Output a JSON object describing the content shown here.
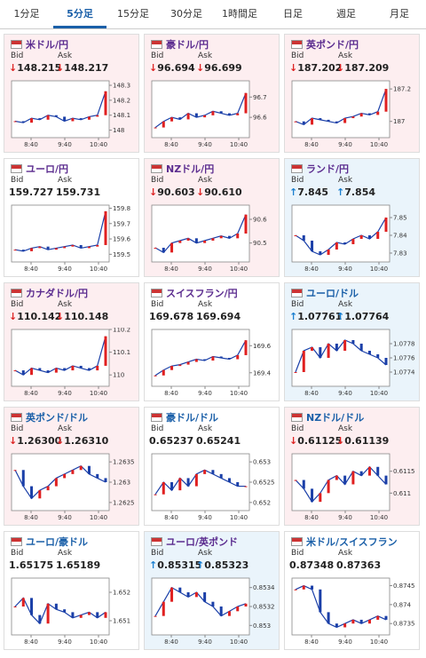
{
  "tabs": [
    "1分足",
    "5分足",
    "15分足",
    "30分足",
    "1時間足",
    "日足",
    "週足",
    "月足"
  ],
  "active_tab": 1,
  "labels": {
    "bid": "Bid",
    "ask": "Ask"
  },
  "x_labels": [
    "8:40",
    "9:40",
    "10:40"
  ],
  "cards": [
    {
      "pair": "米ドル/円",
      "dir": "↓",
      "bid": "148.215",
      "ask": "148.217",
      "trend": "down",
      "chart": {
        "ylim": [
          147.95,
          148.33
        ],
        "yticks": [
          148.3,
          148.2,
          148.1,
          148
        ],
        "values": [
          148.06,
          148.05,
          148.08,
          148.07,
          148.1,
          148.09,
          148.06,
          148.08,
          148.07,
          148.09,
          148.1,
          148.26
        ]
      }
    },
    {
      "pair": "豪ドル/円",
      "dir": "↓",
      "bid": "96.694",
      "ask": "96.699",
      "trend": "down",
      "chart": {
        "ylim": [
          96.5,
          96.78
        ],
        "yticks": [
          96.7,
          96.6
        ],
        "values": [
          96.55,
          96.58,
          96.6,
          96.59,
          96.62,
          96.6,
          96.61,
          96.63,
          96.62,
          96.61,
          96.62,
          96.72
        ]
      }
    },
    {
      "pair": "英ポンド/円",
      "dir": "↓",
      "bid": "187.202",
      "ask": "187.209",
      "trend": "down",
      "chart": {
        "ylim": [
          186.9,
          187.25
        ],
        "yticks": [
          187.2,
          187
        ],
        "values": [
          187.0,
          186.98,
          187.02,
          187.01,
          187.0,
          186.99,
          187.02,
          187.03,
          187.05,
          187.04,
          187.06,
          187.2
        ]
      }
    },
    {
      "pair": "ユーロ/円",
      "bid": "159.727",
      "ask": "159.731",
      "trend": "flat",
      "chart": {
        "ylim": [
          159.45,
          159.82
        ],
        "yticks": [
          159.8,
          159.7,
          159.6,
          159.5
        ],
        "values": [
          159.53,
          159.52,
          159.54,
          159.55,
          159.53,
          159.54,
          159.55,
          159.56,
          159.54,
          159.55,
          159.56,
          159.78
        ]
      }
    },
    {
      "pair": "NZドル/円",
      "dir": "↓",
      "bid": "90.603",
      "ask": "90.610",
      "trend": "down",
      "chart": {
        "ylim": [
          90.42,
          90.66
        ],
        "yticks": [
          90.6,
          90.5
        ],
        "values": [
          90.48,
          90.46,
          90.5,
          90.51,
          90.52,
          90.5,
          90.51,
          90.52,
          90.53,
          90.52,
          90.54,
          90.62
        ]
      }
    },
    {
      "pair": "ランド/円",
      "dir": "↑",
      "bid": "7.845",
      "ask": "7.854",
      "trend": "up",
      "chart": {
        "ylim": [
          7.825,
          7.857
        ],
        "yticks": [
          7.85,
          7.84,
          7.83
        ],
        "values": [
          7.84,
          7.837,
          7.831,
          7.829,
          7.832,
          7.836,
          7.835,
          7.838,
          7.84,
          7.838,
          7.842,
          7.85
        ]
      }
    },
    {
      "pair": "カナダドル/円",
      "dir": "↓",
      "bid": "110.142",
      "ask": "110.148",
      "trend": "down",
      "chart": {
        "ylim": [
          109.95,
          110.2
        ],
        "yticks": [
          110.2,
          110.1,
          110
        ],
        "values": [
          110.02,
          110.0,
          110.03,
          110.02,
          110.01,
          110.03,
          110.02,
          110.04,
          110.03,
          110.02,
          110.04,
          110.17
        ]
      }
    },
    {
      "pair": "スイスフラン/円",
      "bid": "169.678",
      "ask": "169.694",
      "trend": "flat",
      "chart": {
        "ylim": [
          169.3,
          169.72
        ],
        "yticks": [
          169.6,
          169.4
        ],
        "values": [
          169.38,
          169.42,
          169.45,
          169.46,
          169.48,
          169.5,
          169.49,
          169.52,
          169.51,
          169.5,
          169.53,
          169.64
        ]
      }
    },
    {
      "pair": "ユーロ/ドル",
      "dir": "↑",
      "bid": "1.07761",
      "ask": "1.07764",
      "trend": "up",
      "chart": {
        "ylim": [
          1.0772,
          1.078
        ],
        "yticks": [
          1.0778,
          1.0776,
          1.0774
        ],
        "values": [
          1.0774,
          1.0777,
          1.07775,
          1.0776,
          1.0778,
          1.0777,
          1.07785,
          1.0778,
          1.0777,
          1.07765,
          1.0776,
          1.0775
        ]
      }
    },
    {
      "pair": "英ポンド/ドル",
      "dir": "↓",
      "bid": "1.26300",
      "ask": "1.26310",
      "trend": "down",
      "chart": {
        "ylim": [
          1.2623,
          1.2637
        ],
        "yticks": [
          1.2635,
          1.263,
          1.2625
        ],
        "values": [
          1.2633,
          1.2629,
          1.2626,
          1.2628,
          1.2629,
          1.2631,
          1.2632,
          1.2633,
          1.2634,
          1.2632,
          1.2631,
          1.263
        ]
      }
    },
    {
      "pair": "豪ドル/ドル",
      "bid": "0.65237",
      "ask": "0.65241",
      "trend": "flat",
      "chart": {
        "ylim": [
          0.6518,
          0.6532
        ],
        "yticks": [
          0.653,
          0.6525,
          0.652
        ],
        "values": [
          0.6522,
          0.6525,
          0.6523,
          0.6526,
          0.6524,
          0.6527,
          0.6528,
          0.6527,
          0.6526,
          0.6525,
          0.6524,
          0.6524
        ]
      }
    },
    {
      "pair": "NZドル/ドル",
      "dir": "↓",
      "bid": "0.61125",
      "ask": "0.61139",
      "trend": "down",
      "chart": {
        "ylim": [
          0.6106,
          0.6119
        ],
        "yticks": [
          0.6115,
          0.611
        ],
        "values": [
          0.6113,
          0.6111,
          0.6108,
          0.611,
          0.6113,
          0.6114,
          0.6112,
          0.6115,
          0.6114,
          0.6116,
          0.6114,
          0.6112
        ]
      }
    },
    {
      "pair": "ユーロ/豪ドル",
      "bid": "1.65175",
      "ask": "1.65189",
      "trend": "flat",
      "chart": {
        "ylim": [
          1.6505,
          1.6525
        ],
        "yticks": [
          1.652,
          1.651
        ],
        "values": [
          1.6515,
          1.6518,
          1.6512,
          1.6509,
          1.6516,
          1.6514,
          1.6513,
          1.6511,
          1.6512,
          1.6513,
          1.6511,
          1.6513
        ]
      }
    },
    {
      "pair": "ユーロ/英ポンド",
      "dir": "↑",
      "bid": "0.85315",
      "ask": "0.85323",
      "trend": "up",
      "chart": {
        "ylim": [
          0.8529,
          0.8535
        ],
        "yticks": [
          0.8534,
          0.8532,
          0.853
        ],
        "values": [
          0.8531,
          0.85325,
          0.8534,
          0.85335,
          0.8533,
          0.85335,
          0.85325,
          0.8532,
          0.8531,
          0.85315,
          0.8532,
          0.85323
        ]
      }
    },
    {
      "pair": "米ドル/スイスフラン",
      "bid": "0.87348",
      "ask": "0.87363",
      "trend": "flat",
      "chart": {
        "ylim": [
          0.8732,
          0.8747
        ],
        "yticks": [
          0.8745,
          0.874,
          0.8735
        ],
        "values": [
          0.8744,
          0.8745,
          0.8744,
          0.8738,
          0.8735,
          0.8734,
          0.8735,
          0.8736,
          0.8735,
          0.8736,
          0.8737,
          0.8736
        ]
      }
    }
  ]
}
